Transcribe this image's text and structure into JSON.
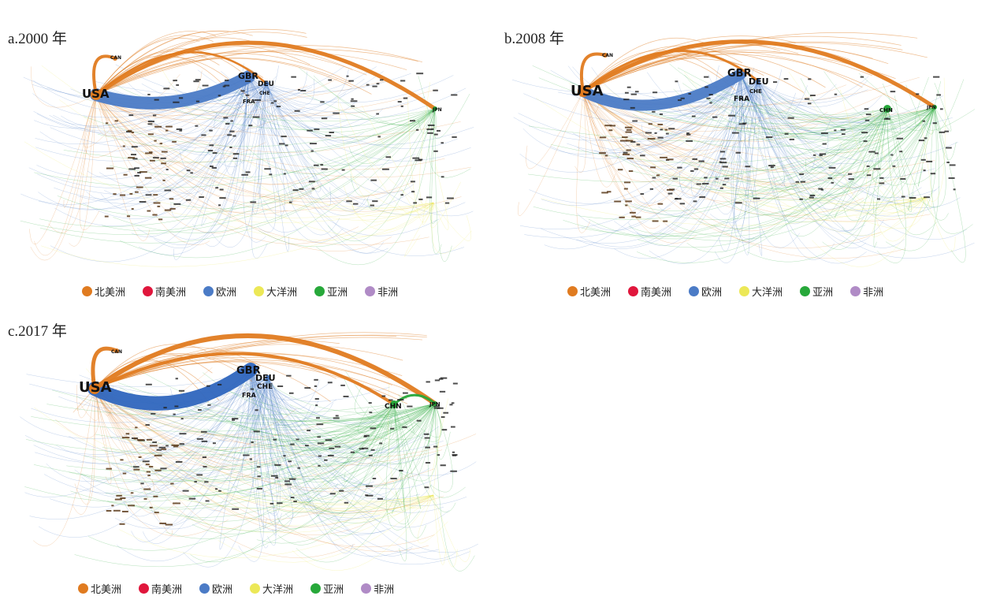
{
  "panels": [
    {
      "title": "a.2000 年",
      "nodes": {
        "USA": "USA",
        "GBR": "GBR",
        "DEU": "DEU",
        "FRA": "FRA",
        "CAN": "CAN",
        "JPN": "JPN",
        "CHE": "CHE"
      }
    },
    {
      "title": "b.2008 年",
      "nodes": {
        "USA": "USA",
        "GBR": "GBR",
        "DEU": "DEU",
        "FRA": "FRA",
        "CAN": "CAN",
        "JPN": "JPN",
        "CHE": "CHE",
        "CHN": "CHN"
      }
    },
    {
      "title": "c.2017 年",
      "nodes": {
        "USA": "USA",
        "GBR": "GBR",
        "DEU": "DEU",
        "FRA": "FRA",
        "CAN": "CAN",
        "JPN": "JPN",
        "CHE": "CHE",
        "CHN": "CHN"
      }
    }
  ],
  "legend": [
    {
      "label": "北美洲",
      "color": "#e07b20"
    },
    {
      "label": "南美洲",
      "color": "#e0163c"
    },
    {
      "label": "欧洲",
      "color": "#4b7bc6"
    },
    {
      "label": "大洋洲",
      "color": "#ece857"
    },
    {
      "label": "亚洲",
      "color": "#27a83a"
    },
    {
      "label": "非洲",
      "color": "#b08bc6"
    }
  ],
  "colors": {
    "north_america": "#e07b20",
    "europe": "#4b7bc6",
    "asia": "#27a83a",
    "oceania": "#ece857"
  }
}
